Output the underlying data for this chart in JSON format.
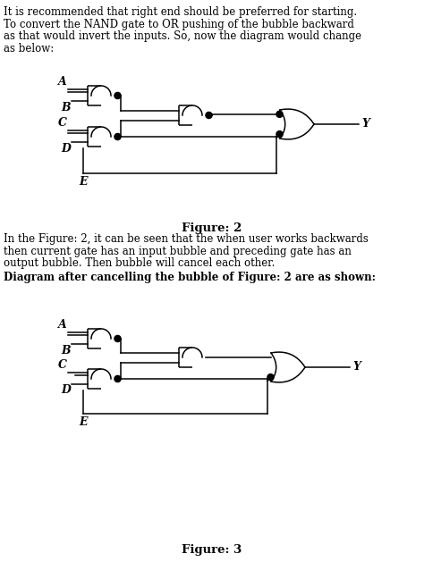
{
  "text_para1_lines": [
    "It is recommended that right end should be preferred for starting.",
    "To convert the NAND gate to OR pushing of the bubble backward",
    "as that would invert the inputs. So, now the diagram would change",
    "as below:"
  ],
  "fig2_caption": "Figure: 2",
  "text_para2_lines": [
    "In the Figure: 2, it can be seen that the when user works backwards",
    "then current gate has an input bubble and preceding gate has an",
    "output bubble. Then bubble will cancel each other."
  ],
  "text_para3": "Diagram after cancelling the bubble of Figure: 2 are as shown:",
  "fig3_caption": "Figure: 3",
  "bg_color": "#ffffff",
  "text_color": "#000000",
  "line_color": "#000000",
  "font_size_body": 8.5,
  "font_size_caption": 9.5,
  "font_size_bold": 8.5
}
